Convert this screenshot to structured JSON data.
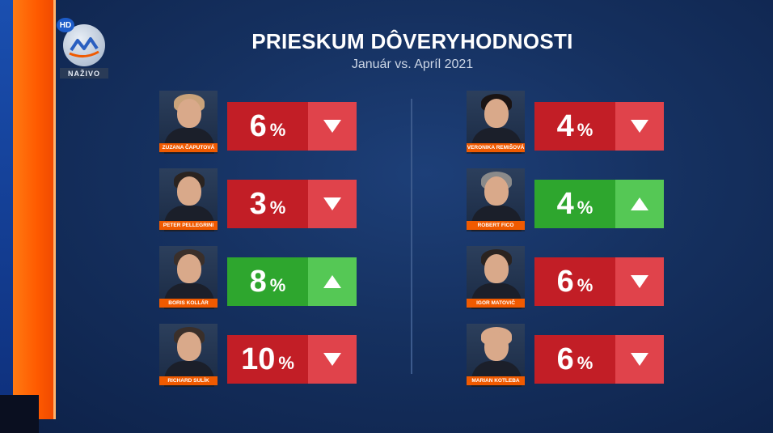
{
  "channel": {
    "hd": "HD",
    "live_label": "NAŽIVO"
  },
  "header": {
    "title": "PRIESKUM DÔVERYHODNOSTI",
    "subtitle": "Január vs. Apríl 2021"
  },
  "colors": {
    "down_value": "#c21e26",
    "down_arrow": "#e0434b",
    "up_value": "#2ea62e",
    "up_arrow": "#55c855",
    "name_tag": "#f05a00"
  },
  "left": [
    {
      "name": "ZUZANA ČAPUTOVÁ",
      "value": "6",
      "unit": "%",
      "trend": "down",
      "icon": "arrow-down-icon"
    },
    {
      "name": "PETER PELLEGRINI",
      "value": "3",
      "unit": "%",
      "trend": "down",
      "icon": "arrow-down-icon"
    },
    {
      "name": "BORIS KOLLÁR",
      "value": "8",
      "unit": "%",
      "trend": "up",
      "icon": "arrow-up-icon"
    },
    {
      "name": "RICHARD SULÍK",
      "value": "10",
      "unit": "%",
      "trend": "down",
      "icon": "arrow-down-icon"
    }
  ],
  "right": [
    {
      "name": "VERONIKA REMIŠOVÁ",
      "value": "4",
      "unit": "%",
      "trend": "down",
      "icon": "arrow-down-icon"
    },
    {
      "name": "ROBERT FICO",
      "value": "4",
      "unit": "%",
      "trend": "up",
      "icon": "arrow-up-icon"
    },
    {
      "name": "IGOR MATOVIČ",
      "value": "6",
      "unit": "%",
      "trend": "down",
      "icon": "arrow-down-icon"
    },
    {
      "name": "MARIAN KOTLEBA",
      "value": "6",
      "unit": "%",
      "trend": "down",
      "icon": "arrow-down-icon"
    }
  ]
}
